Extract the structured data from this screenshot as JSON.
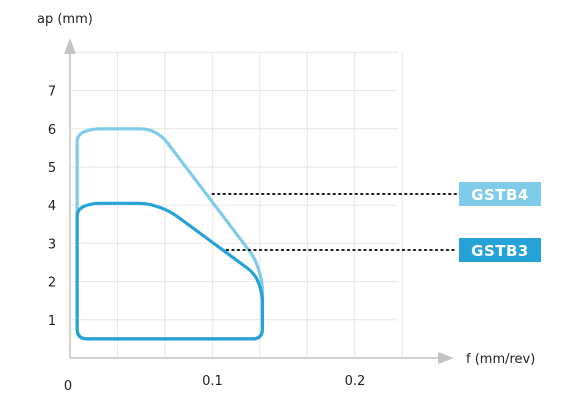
{
  "chart_data": {
    "type": "area",
    "xlabel": "f (mm/rev)",
    "ylabel": "ap (mm)",
    "xlim": [
      0,
      0.22
    ],
    "ylim": [
      0,
      8
    ],
    "x_ticks": [
      0,
      0.1,
      0.2
    ],
    "x_tick_labels": [
      "0",
      "0.1",
      "0.2"
    ],
    "y_ticks": [
      1,
      2,
      3,
      4,
      5,
      6,
      7
    ],
    "y_tick_labels": [
      "1",
      "2",
      "3",
      "4",
      "5",
      "6",
      "7"
    ],
    "grid": true,
    "series": [
      {
        "name": "GSTB4",
        "color": "#7fcbea",
        "points": [
          [
            0.005,
            0.5
          ],
          [
            0.005,
            5.85
          ],
          [
            0.015,
            6.0
          ],
          [
            0.055,
            6.0
          ],
          [
            0.065,
            5.8
          ],
          [
            0.13,
            2.6
          ],
          [
            0.135,
            2.0
          ],
          [
            0.135,
            0.5
          ]
        ],
        "label_anchor": [
          0.1,
          4.25
        ]
      },
      {
        "name": "GSTB3",
        "color": "#25a2d8",
        "points": [
          [
            0.005,
            0.5
          ],
          [
            0.005,
            3.9
          ],
          [
            0.015,
            4.05
          ],
          [
            0.055,
            4.05
          ],
          [
            0.07,
            3.85
          ],
          [
            0.13,
            2.2
          ],
          [
            0.135,
            1.7
          ],
          [
            0.135,
            0.5
          ]
        ],
        "label_anchor": [
          0.11,
          2.75
        ]
      }
    ]
  }
}
